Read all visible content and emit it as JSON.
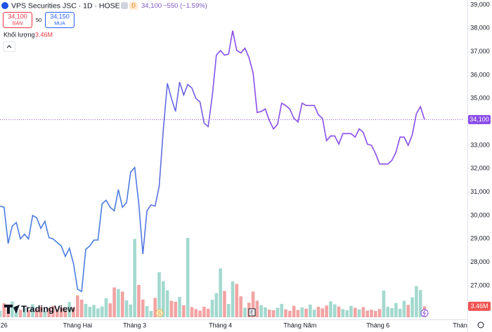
{
  "header": {
    "title": "VPS Securities JSC · 1D · HOSE",
    "badge": "D",
    "last": "34,100",
    "change": "−550 (−1.59%)",
    "sell": {
      "price": "34,100",
      "label": "BÁN"
    },
    "spread": "50",
    "buy": {
      "price": "34,150",
      "label": "MUA"
    }
  },
  "chart_data": {
    "type": "line",
    "series": [
      {
        "colors": [
          "#4a7de0",
          "#8a4de8"
        ],
        "values": [
          30400,
          30350,
          28800,
          29550,
          29700,
          29000,
          29200,
          29000,
          30000,
          29900,
          29450,
          29750,
          29050,
          29000,
          28850,
          28700,
          28250,
          28600,
          27950,
          26850,
          26750,
          28550,
          28700,
          28950,
          28950,
          30500,
          30650,
          30350,
          30200,
          31100,
          30350,
          30550,
          31850,
          32050,
          30500,
          28350,
          30200,
          30450,
          30400,
          31250,
          33650,
          35650,
          35000,
          34450,
          35700,
          35150,
          35600,
          35450,
          35000,
          34850,
          33950,
          33800,
          35100,
          36850,
          37050,
          36850,
          36900,
          37900,
          37050,
          36950,
          37150,
          36750,
          36100,
          34400,
          34450,
          34550,
          34050,
          33700,
          33900,
          34800,
          34700,
          34550,
          34150,
          34000,
          34800,
          34700,
          34700,
          34700,
          34300,
          34150,
          33200,
          33400,
          33400,
          33050,
          33500,
          33500,
          33500,
          33350,
          33700,
          33550,
          33050,
          33000,
          32650,
          32200,
          32200,
          32200,
          32350,
          32700,
          33350,
          33350,
          33000,
          33450,
          34350,
          34650,
          34100
        ]
      }
    ],
    "ylim": [
      25650,
      39210
    ],
    "yticks": [
      {
        "value": 27000,
        "label": "27,000"
      },
      {
        "value": 28000,
        "label": "28,000"
      },
      {
        "value": 29000,
        "label": "29,000"
      },
      {
        "value": 30000,
        "label": "30,000"
      },
      {
        "value": 31000,
        "label": "31,000"
      },
      {
        "value": 32000,
        "label": "32,000"
      },
      {
        "value": 33000,
        "label": "33,000"
      },
      {
        "value": 34000,
        "label": "34,000"
      },
      {
        "value": 35000,
        "label": "35,000"
      },
      {
        "value": 36000,
        "label": "36,000"
      },
      {
        "value": 37000,
        "label": "37,000"
      },
      {
        "value": 38000,
        "label": "38,000"
      },
      {
        "value": 39000,
        "label": "39,000"
      }
    ],
    "xticks": [
      {
        "value": 1,
        "label": "26"
      },
      {
        "value": 19,
        "label": "Tháng Hai"
      },
      {
        "value": 33,
        "label": "Tháng 3"
      },
      {
        "value": 54,
        "label": "Tháng 4"
      },
      {
        "value": 73.5,
        "label": "Tháng Năm"
      },
      {
        "value": 92.6,
        "label": "Tháng 6"
      },
      {
        "value": 112.7,
        "label": "Thán"
      }
    ],
    "xlim": [
      0,
      104
    ],
    "grid": false
  },
  "volume": {
    "name": "Khối lượng",
    "value_label": "3.46M",
    "lim": [
      0,
      100
    ],
    "up_color": "#a3d9cf",
    "down_color": "#f2a3a3",
    "values": [
      2.1,
      4.4,
      2.8,
      5.0,
      3.5,
      2.4,
      3.0,
      2.2,
      4.1,
      2.6,
      3.3,
      2.0,
      2.9,
      3.6,
      2.5,
      3.1,
      2.2,
      4.8,
      3.0,
      6.9,
      5.6,
      4.2,
      3.3,
      3.9,
      2.8,
      3.4,
      6.0,
      4.4,
      9.4,
      8.9,
      8.1,
      5.3,
      4.0,
      24.7,
      10.2,
      5.6,
      3.5,
      2.0,
      6.1,
      14.2,
      11.4,
      8.5,
      5.2,
      4.9,
      6.4,
      3.8,
      25.0,
      3.2,
      2.6,
      2.1,
      3.3,
      2.7,
      5.5,
      7.6,
      15.4,
      8.3,
      4.2,
      11.3,
      10.5,
      6.6,
      3.0,
      4.6,
      8.1,
      5.2,
      3.8,
      3.1,
      2.4,
      2.2,
      3.0,
      4.2,
      2.5,
      2.0,
      3.6,
      2.3,
      3.1,
      2.7,
      4.0,
      2.4,
      3.3,
      2.8,
      3.7,
      5.0,
      4.1,
      3.4,
      2.6,
      2.2,
      3.6,
      3.0,
      2.5,
      3.2,
      2.1,
      2.4,
      2.0,
      2.6,
      8.4,
      3.3,
      2.9,
      4.5,
      2.7,
      5.2,
      3.9,
      6.3,
      9.8,
      8.6,
      3.46
    ]
  },
  "markers": [
    "S",
    "E"
  ],
  "branding": "TradingView"
}
